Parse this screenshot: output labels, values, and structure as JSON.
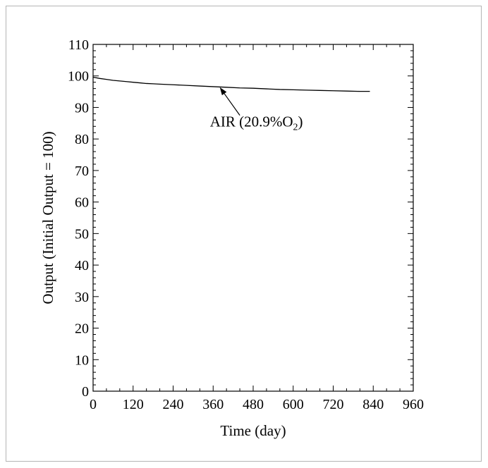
{
  "chart_data": {
    "type": "line",
    "xlabel": "Time (day)",
    "ylabel": "Output (Initial Output = 100)",
    "xlim": [
      0,
      960
    ],
    "ylim": [
      0,
      110
    ],
    "x_ticks": [
      0,
      120,
      240,
      360,
      480,
      600,
      720,
      840,
      960
    ],
    "y_ticks": [
      0,
      10,
      20,
      30,
      40,
      50,
      60,
      70,
      80,
      90,
      100,
      110
    ],
    "x_minor_step": 40,
    "y_minor_step": 2,
    "grid": false,
    "series": [
      {
        "x": [
          0,
          20,
          40,
          60,
          80,
          100,
          120,
          140,
          160,
          180,
          200,
          240,
          280,
          320,
          360,
          400,
          440,
          480,
          520,
          560,
          600,
          640,
          680,
          720,
          760,
          800,
          830
        ],
        "y": [
          99.6,
          99.2,
          98.9,
          98.6,
          98.4,
          98.2,
          98.0,
          97.8,
          97.6,
          97.5,
          97.4,
          97.2,
          97.0,
          96.8,
          96.6,
          96.4,
          96.2,
          96.1,
          95.9,
          95.7,
          95.6,
          95.5,
          95.4,
          95.3,
          95.2,
          95.1,
          95.1
        ]
      }
    ],
    "annotation": {
      "text": "AIR (20.9%O",
      "subscript": "2",
      "suffix": ")",
      "text_at": [
        380,
        85.5
      ],
      "arrow_from": [
        440,
        87.5
      ],
      "arrow_to": [
        380,
        96.4
      ]
    }
  }
}
